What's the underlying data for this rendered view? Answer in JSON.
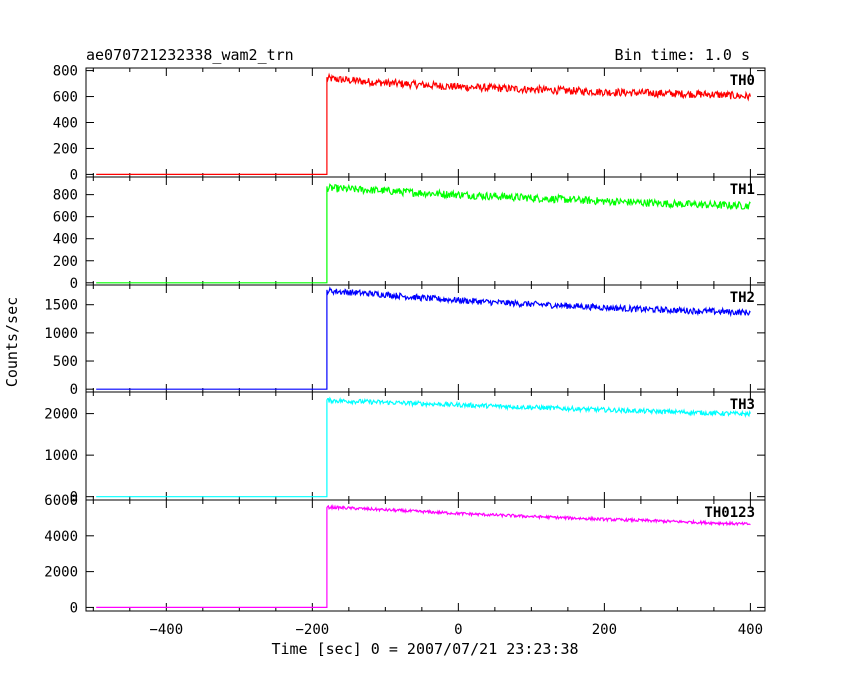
{
  "header": {
    "title": "ae070721232338_wam2_trn",
    "bin_time": "Bin time: 1.0 s"
  },
  "chart_data": {
    "type": "line",
    "title": "ae070721232338_wam2_trn",
    "subtitle": "Bin time: 1.0 s",
    "xlabel": "Time [sec] 0 = 2007/07/21 23:23:38",
    "ylabel": "Counts/sec",
    "xlim": [
      -510,
      420
    ],
    "xticks": [
      -400,
      -200,
      0,
      200,
      400
    ],
    "grid": false,
    "onset_time": -180,
    "end_time": 400,
    "panels": [
      {
        "name": "TH0",
        "color": "#ff0000",
        "ylim": [
          -20,
          820
        ],
        "yticks": [
          0,
          200,
          400,
          600,
          800
        ],
        "pre_level": 0,
        "x": [
          -180,
          -150,
          -100,
          -50,
          0,
          50,
          100,
          150,
          200,
          250,
          300,
          350,
          400
        ],
        "values": [
          740,
          725,
          705,
          690,
          675,
          665,
          655,
          645,
          635,
          628,
          622,
          616,
          600
        ],
        "noise": 30
      },
      {
        "name": "TH1",
        "color": "#00ff00",
        "ylim": [
          -20,
          960
        ],
        "yticks": [
          0,
          200,
          400,
          600,
          800
        ],
        "pre_level": 0,
        "x": [
          -180,
          -150,
          -100,
          -50,
          0,
          50,
          100,
          150,
          200,
          250,
          300,
          350,
          400
        ],
        "values": [
          860,
          850,
          835,
          815,
          800,
          785,
          770,
          755,
          740,
          728,
          715,
          705,
          700
        ],
        "noise": 35
      },
      {
        "name": "TH2",
        "color": "#0000ff",
        "ylim": [
          -50,
          1850
        ],
        "yticks": [
          0,
          500,
          1000,
          1500
        ],
        "pre_level": 0,
        "x": [
          -180,
          -150,
          -100,
          -50,
          0,
          50,
          100,
          150,
          200,
          250,
          300,
          350,
          400
        ],
        "values": [
          1750,
          1720,
          1680,
          1620,
          1580,
          1540,
          1510,
          1480,
          1450,
          1420,
          1400,
          1380,
          1360
        ],
        "noise": 55
      },
      {
        "name": "TH3",
        "color": "#00ffff",
        "ylim": [
          -80,
          2520
        ],
        "yticks": [
          0,
          1000,
          2000
        ],
        "pre_level": 0,
        "x": [
          -180,
          -150,
          -100,
          -50,
          0,
          50,
          100,
          150,
          200,
          250,
          300,
          350,
          400
        ],
        "values": [
          2320,
          2300,
          2270,
          2240,
          2210,
          2180,
          2150,
          2120,
          2090,
          2060,
          2040,
          2010,
          1990
        ],
        "noise": 55
      },
      {
        "name": "TH0123",
        "color": "#ff00ff",
        "ylim": [
          -200,
          6000
        ],
        "yticks": [
          0,
          2000,
          4000,
          6000
        ],
        "pre_level": 0,
        "x": [
          -180,
          -150,
          -100,
          -50,
          0,
          50,
          100,
          150,
          200,
          250,
          300,
          350,
          400
        ],
        "values": [
          5600,
          5550,
          5450,
          5350,
          5250,
          5160,
          5080,
          5000,
          4920,
          4860,
          4790,
          4720,
          4650
        ],
        "noise": 80
      }
    ]
  }
}
